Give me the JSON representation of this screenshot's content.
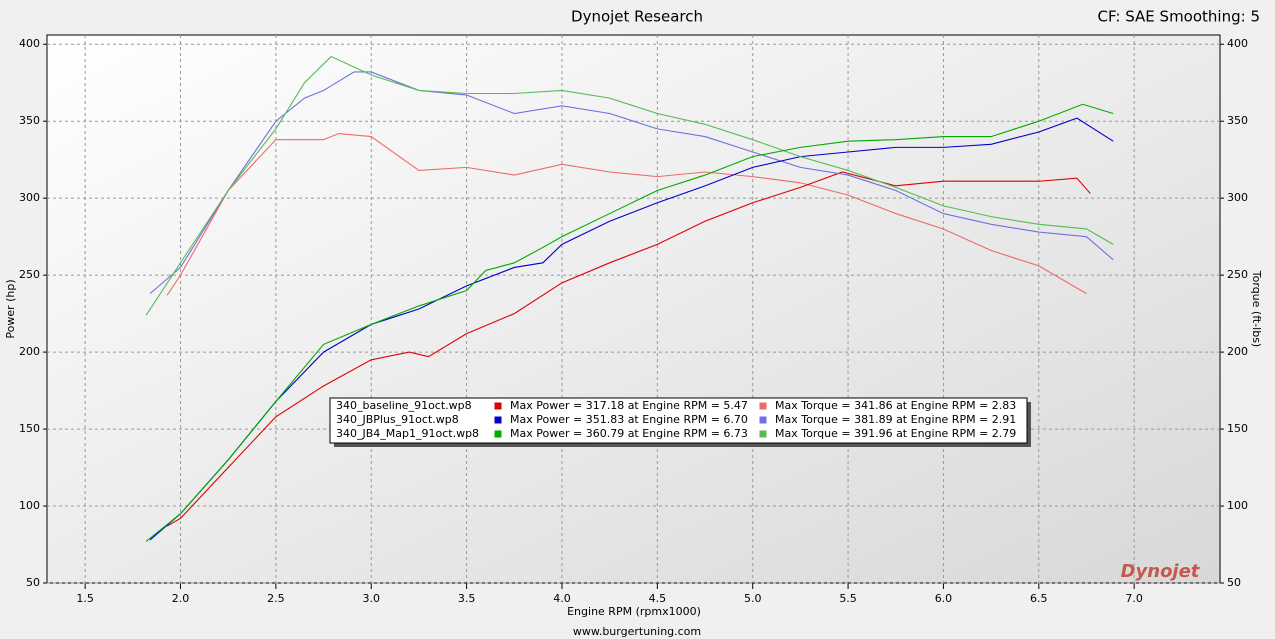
{
  "chart_data": {
    "type": "line",
    "title": "Dynojet Research",
    "subtitle": "CF: SAE Smoothing: 5",
    "xlabel": "Engine RPM (rpmx1000)",
    "ylabel": "Power (hp)",
    "y2label": "Torque (ft-lbs)",
    "footer": "www.burgertuning.com",
    "watermark": "Dynojet",
    "grid": true,
    "xlim": [
      1.3,
      7.45
    ],
    "ylim": [
      50,
      406
    ],
    "y2lim": [
      50,
      406
    ],
    "xticks": [
      1.5,
      {
        "value": 2,
        "label": "2.0"
      },
      2.5,
      {
        "value": 3,
        "label": "3.0"
      },
      3.5,
      {
        "value": 4,
        "label": "4.0"
      },
      4.5,
      {
        "value": 5,
        "label": "5.0"
      },
      5.5,
      {
        "value": 6,
        "label": "6.0"
      },
      6.5,
      {
        "value": 7,
        "label": "7.0"
      }
    ],
    "yticks": [
      50,
      100,
      150,
      200,
      250,
      300,
      350,
      400
    ],
    "y2ticks": [
      50,
      100,
      150,
      200,
      250,
      300,
      350,
      400
    ],
    "runs": [
      {
        "name": "340_baseline_91oct.wp8",
        "power_color": "#dd0000",
        "torque_color": "#ee6a6a",
        "max_power": "Max Power = 317.18 at Engine RPM = 5.47",
        "max_torque": "Max Torque = 341.86 at Engine RPM = 2.83",
        "power": {
          "x": [
            1.93,
            2.0,
            2.25,
            2.5,
            2.75,
            3.0,
            3.2,
            3.3,
            3.5,
            3.75,
            4.0,
            4.25,
            4.5,
            4.75,
            5.0,
            5.25,
            5.47,
            5.75,
            6.0,
            6.25,
            6.5,
            6.7,
            6.77
          ],
          "values": [
            87,
            92,
            125,
            158,
            178,
            195,
            200,
            197,
            212,
            225,
            245,
            258,
            270,
            285,
            297,
            307,
            317,
            308,
            311,
            311,
            311,
            313,
            303
          ]
        },
        "torque": {
          "x": [
            1.93,
            2.0,
            2.25,
            2.5,
            2.75,
            2.83,
            3.0,
            3.25,
            3.5,
            3.75,
            4.0,
            4.25,
            4.5,
            4.75,
            5.0,
            5.25,
            5.5,
            5.75,
            6.0,
            6.25,
            6.5,
            6.75
          ],
          "values": [
            237,
            250,
            305,
            338,
            338,
            342,
            340,
            318,
            320,
            315,
            322,
            317,
            314,
            317,
            314,
            310,
            302,
            290,
            280,
            266,
            256,
            238
          ]
        }
      },
      {
        "name": "340_JBPlus_91oct.wp8",
        "power_color": "#0000cc",
        "torque_color": "#7070e0",
        "max_power": "Max Power = 351.83 at Engine RPM = 6.70",
        "max_torque": "Max Torque = 381.89 at Engine RPM = 2.91",
        "power": {
          "x": [
            1.84,
            2.0,
            2.25,
            2.5,
            2.75,
            3.0,
            3.25,
            3.5,
            3.75,
            3.9,
            4.0,
            4.25,
            4.5,
            4.75,
            5.0,
            5.25,
            5.5,
            5.75,
            6.0,
            6.25,
            6.5,
            6.7,
            6.89
          ],
          "values": [
            78,
            95,
            130,
            168,
            200,
            218,
            228,
            243,
            255,
            258,
            270,
            285,
            297,
            308,
            320,
            327,
            330,
            333,
            333,
            335,
            343,
            352,
            337
          ]
        },
        "torque": {
          "x": [
            1.84,
            2.0,
            2.25,
            2.5,
            2.65,
            2.75,
            2.91,
            3.0,
            3.25,
            3.5,
            3.75,
            4.0,
            4.25,
            4.5,
            4.75,
            5.0,
            5.25,
            5.5,
            5.75,
            6.0,
            6.25,
            6.5,
            6.75,
            6.89
          ],
          "values": [
            238,
            255,
            305,
            350,
            365,
            370,
            382,
            382,
            370,
            367,
            355,
            360,
            355,
            345,
            340,
            330,
            320,
            315,
            305,
            290,
            283,
            278,
            275,
            260
          ]
        }
      },
      {
        "name": "340_JB4_Map1_91oct.wp8",
        "power_color": "#00aa00",
        "torque_color": "#55bb55",
        "max_power": "Max Power = 360.79 at Engine RPM = 6.73",
        "max_torque": "Max Torque = 391.96 at Engine RPM = 2.79",
        "power": {
          "x": [
            1.82,
            2.0,
            2.25,
            2.5,
            2.75,
            3.0,
            3.25,
            3.5,
            3.6,
            3.75,
            3.9,
            4.0,
            4.25,
            4.5,
            4.75,
            5.0,
            5.25,
            5.5,
            5.75,
            6.0,
            6.25,
            6.5,
            6.73,
            6.89
          ],
          "values": [
            77,
            95,
            130,
            168,
            205,
            218,
            230,
            240,
            253,
            258,
            268,
            275,
            290,
            305,
            315,
            327,
            333,
            337,
            338,
            340,
            340,
            350,
            361,
            355
          ]
        },
        "torque": {
          "x": [
            1.82,
            2.0,
            2.25,
            2.5,
            2.65,
            2.79,
            3.0,
            3.25,
            3.5,
            3.75,
            4.0,
            4.25,
            4.5,
            4.75,
            5.0,
            5.25,
            5.5,
            5.75,
            6.0,
            6.25,
            6.5,
            6.75,
            6.89
          ],
          "values": [
            224,
            258,
            305,
            345,
            375,
            392,
            380,
            370,
            368,
            368,
            370,
            365,
            355,
            348,
            338,
            327,
            318,
            307,
            295,
            288,
            283,
            280,
            270
          ]
        }
      }
    ]
  }
}
